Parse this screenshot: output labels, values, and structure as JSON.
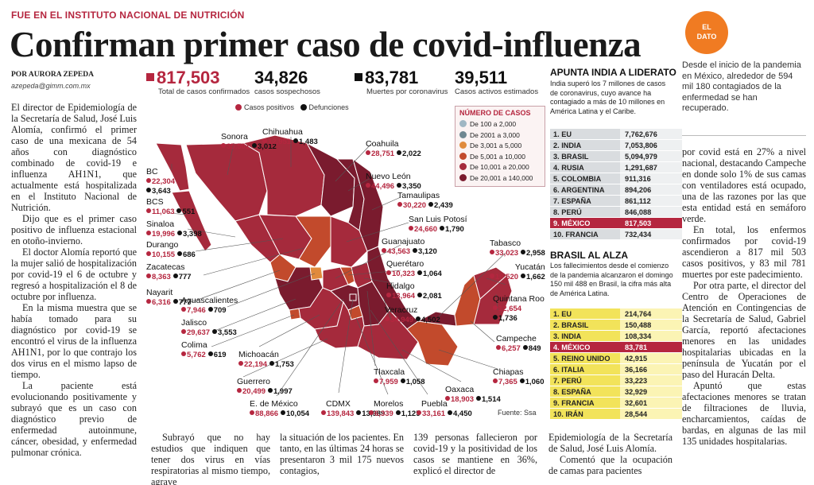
{
  "kicker": "FUE EN EL INSTITUTO NACIONAL DE NUTRICIÓN",
  "headline": "Confirman primer caso de covid-influenza",
  "byline": "POR AURORA ZEPEDA",
  "email": "azepeda@gimm.com.mx",
  "left_column": [
    "El director de Epidemiología de la Secretaría de Salud, José Luis Alomía, confirmó el primer caso de una mexicana de 54 años con diagnóstico combinado de covid-19 e influenza AH1N1, que actualmente está hospitalizada en el Instituto Nacional de Nutrición.",
    "Dijo que es el primer caso positivo de influenza estacional en otoño-invierno.",
    "El doctor Alomía reportó que la mujer salió de hospitalización por covid-19 el 6 de octubre y regresó a hospitalización el 8 de octubre por influenza.",
    "En la misma muestra que se había tomado para su diagnóstico por covid-19 se encontró el virus de la influenza AH1N1, por lo que contrajo los dos virus en el mismo lapso de tiempo.",
    "La paciente está evolucionando positivamente y subrayó que es un caso con diagnóstico previo de enfermedad autoinmune, cáncer, obesidad, y enfermedad pulmonar crónica."
  ],
  "stats": [
    {
      "value": "817,503",
      "label": "Total de casos confirmados",
      "color": "#b5263f"
    },
    {
      "value": "34,826",
      "label": "casos sospechosos"
    },
    {
      "value": "83,781",
      "label": "Muertes por coronavirus",
      "color": "#111111"
    },
    {
      "value": "39,511",
      "label": "Casos activos estimados"
    }
  ],
  "legend": {
    "positive": "Casos positivos",
    "deaths": "Defunciones"
  },
  "number_legend": {
    "title": "NÚMERO DE CASOS",
    "items": [
      {
        "label": "De 100 a 2,000",
        "color": "#9fb7c4"
      },
      {
        "label": "De 2001 a 3,000",
        "color": "#6f8791"
      },
      {
        "label": "De 3,001 a 5,000",
        "color": "#e08a3c"
      },
      {
        "label": "De 5,001 a 10,000",
        "color": "#c24a2c"
      },
      {
        "label": "De 10,001 a 20,000",
        "color": "#a52a3c"
      },
      {
        "label": "De 20,001 a 140,000",
        "color": "#7a1b2e"
      }
    ]
  },
  "states": [
    {
      "name": "Sonora",
      "pos": "35,501",
      "def": "3,012"
    },
    {
      "name": "Chihuahua",
      "pos": "12,951",
      "def": "1,483"
    },
    {
      "name": "Coahuila",
      "pos": "28,751",
      "def": "2,022"
    },
    {
      "name": "BC",
      "pos": "22,304",
      "def": "3,643"
    },
    {
      "name": "Nuevo León",
      "pos": "44,496",
      "def": "3,350"
    },
    {
      "name": "BCS",
      "pos": "11,063",
      "def": "551"
    },
    {
      "name": "Tamaulipas",
      "pos": "30,220",
      "def": "2,439"
    },
    {
      "name": "Sinaloa",
      "pos": "19,996",
      "def": "3,398"
    },
    {
      "name": "San Luis Potosí",
      "pos": "24,660",
      "def": "1,790"
    },
    {
      "name": "Durango",
      "pos": "10,155",
      "def": "686"
    },
    {
      "name": "Guanajuato",
      "pos": "43,563",
      "def": "3,120"
    },
    {
      "name": "Tabasco",
      "pos": "33,023",
      "def": "2,958"
    },
    {
      "name": "Zacatecas",
      "pos": "8,363",
      "def": "777"
    },
    {
      "name": "Querétaro",
      "pos": "10,323",
      "def": "1,064"
    },
    {
      "name": "Yucatán",
      "pos": "19,520",
      "def": "1,662"
    },
    {
      "name": "Nayarit",
      "pos": "6,316",
      "def": "777"
    },
    {
      "name": "Hidalgo",
      "pos": "13,964",
      "def": "2,081"
    },
    {
      "name": "Aguascalientes",
      "pos": "7,946",
      "def": "709"
    },
    {
      "name": "Quintana Roo",
      "pos": "12,654",
      "def": "1,736"
    },
    {
      "name": "Veracruz",
      "pos": "34,949",
      "def": "4,502"
    },
    {
      "name": "Jalisco",
      "pos": "29,637",
      "def": "3,553"
    },
    {
      "name": "Campeche",
      "pos": "6,257",
      "def": "849"
    },
    {
      "name": "Colima",
      "pos": "5,762",
      "def": "619"
    },
    {
      "name": "Michoacán",
      "pos": "22,194",
      "def": "1,753"
    },
    {
      "name": "Chiapas",
      "pos": "7,365",
      "def": "1,060"
    },
    {
      "name": "Tlaxcala",
      "pos": "7,959",
      "def": "1,058"
    },
    {
      "name": "Oaxaca",
      "pos": "18,903",
      "def": "1,514"
    },
    {
      "name": "Guerrero",
      "pos": "20,499",
      "def": "1,997"
    },
    {
      "name": "E. de México",
      "pos": "88,866",
      "def": "10,054"
    },
    {
      "name": "CDMX",
      "pos": "139,843",
      "def": "13,989"
    },
    {
      "name": "Morelos",
      "pos": "6,339",
      "def": "1,125"
    },
    {
      "name": "Puebla",
      "pos": "33,161",
      "def": "4,450"
    }
  ],
  "source": "Fuente: Ssa",
  "india_panel": {
    "title": "APUNTA INDIA A LIDERATO",
    "text": "India superó los 7 millones de casos de coronavirus, cuyo avance ha contagiado a más de 10 millones en América Latina y el Caribe.",
    "rows": [
      {
        "n": "1. EU",
        "v": "7,762,676"
      },
      {
        "n": "2. INDIA",
        "v": "7,053,806"
      },
      {
        "n": "3. BRASIL",
        "v": "5,094,979"
      },
      {
        "n": "4. RUSIA",
        "v": "1,291,687"
      },
      {
        "n": "5. COLOMBIA",
        "v": "911,316"
      },
      {
        "n": "6. ARGENTINA",
        "v": "894,206"
      },
      {
        "n": "7. ESPAÑA",
        "v": "861,112"
      },
      {
        "n": "8. PERÚ",
        "v": "846,088"
      },
      {
        "n": "9. MÉXICO",
        "v": "817,503",
        "hl": true
      },
      {
        "n": "10. FRANCIA",
        "v": "732,434"
      }
    ]
  },
  "brasil_panel": {
    "title": "BRASIL AL ALZA",
    "text": "Los fallecimientos desde el comienzo de la pandemia alcanzaron el domingo 150 mil 488 en Brasil, la cifra más alta de América Latina.",
    "rows": [
      {
        "n": "1. EU",
        "v": "214,764"
      },
      {
        "n": "2. BRASIL",
        "v": "150,488"
      },
      {
        "n": "3. INDIA",
        "v": "108,334"
      },
      {
        "n": "4. MÉXICO",
        "v": "83,781",
        "hl": true
      },
      {
        "n": "5. REINO UNIDO",
        "v": "42,915"
      },
      {
        "n": "6. ITALIA",
        "v": "36,166"
      },
      {
        "n": "7. PERÚ",
        "v": "33,223"
      },
      {
        "n": "8. ESPAÑA",
        "v": "32,929"
      },
      {
        "n": "9. FRANCIA",
        "v": "32,601"
      },
      {
        "n": "10. IRÁN",
        "v": "28,544"
      }
    ]
  },
  "el_dato": {
    "badge_line1": "EL",
    "badge_line2": "DATO",
    "text": "Desde el inicio de la pandemia en México, alrededor de 594 mil 180 contagiados de la enfermedad se han recuperado."
  },
  "right_column": [
    "por covid está en 27% a nivel nacional, destacando Campeche en donde solo 1% de sus camas con ventiladores está ocupado, una de las razones por las que esta entidad está en semáforo verde.",
    "En total, los enfermos confirmados por covid-19 ascendieron a 817 mil 503 casos positivos, y 83 mil 781 muertes por este padecimiento.",
    "Por otra parte, el director del Centro de Operaciones de Atención en Contingencias de la Secretaría de Salud, Gabriel García, reportó afectaciones menores en las unidades hospitalarias ubicadas en la península de Yucatán por el paso del Huracán Delta.",
    "Apuntó que estas afectaciones menores se tratan de filtraciones de lluvia, encharcamientos, caídas de bardas, en algunas de las mil 135 unidades hospitalarias."
  ],
  "bottom_cols": [
    "Subrayó que no hay estudios que indiquen que tener dos virus en vías respiratorias al mismo tiempo, agrave",
    "la situación de los pacientes. En tanto, en las últimas 24 horas se presentaron 3 mil 175 nuevos contagios,",
    "139 personas fallecieron por covid-19 y la positividad de los casos se mantiene en 36%, explicó el director de",
    "Epidemiología de la Secretaría de Salud, José Luis Alomía.",
    "Comentó que la ocupación de camas para pacientes"
  ]
}
